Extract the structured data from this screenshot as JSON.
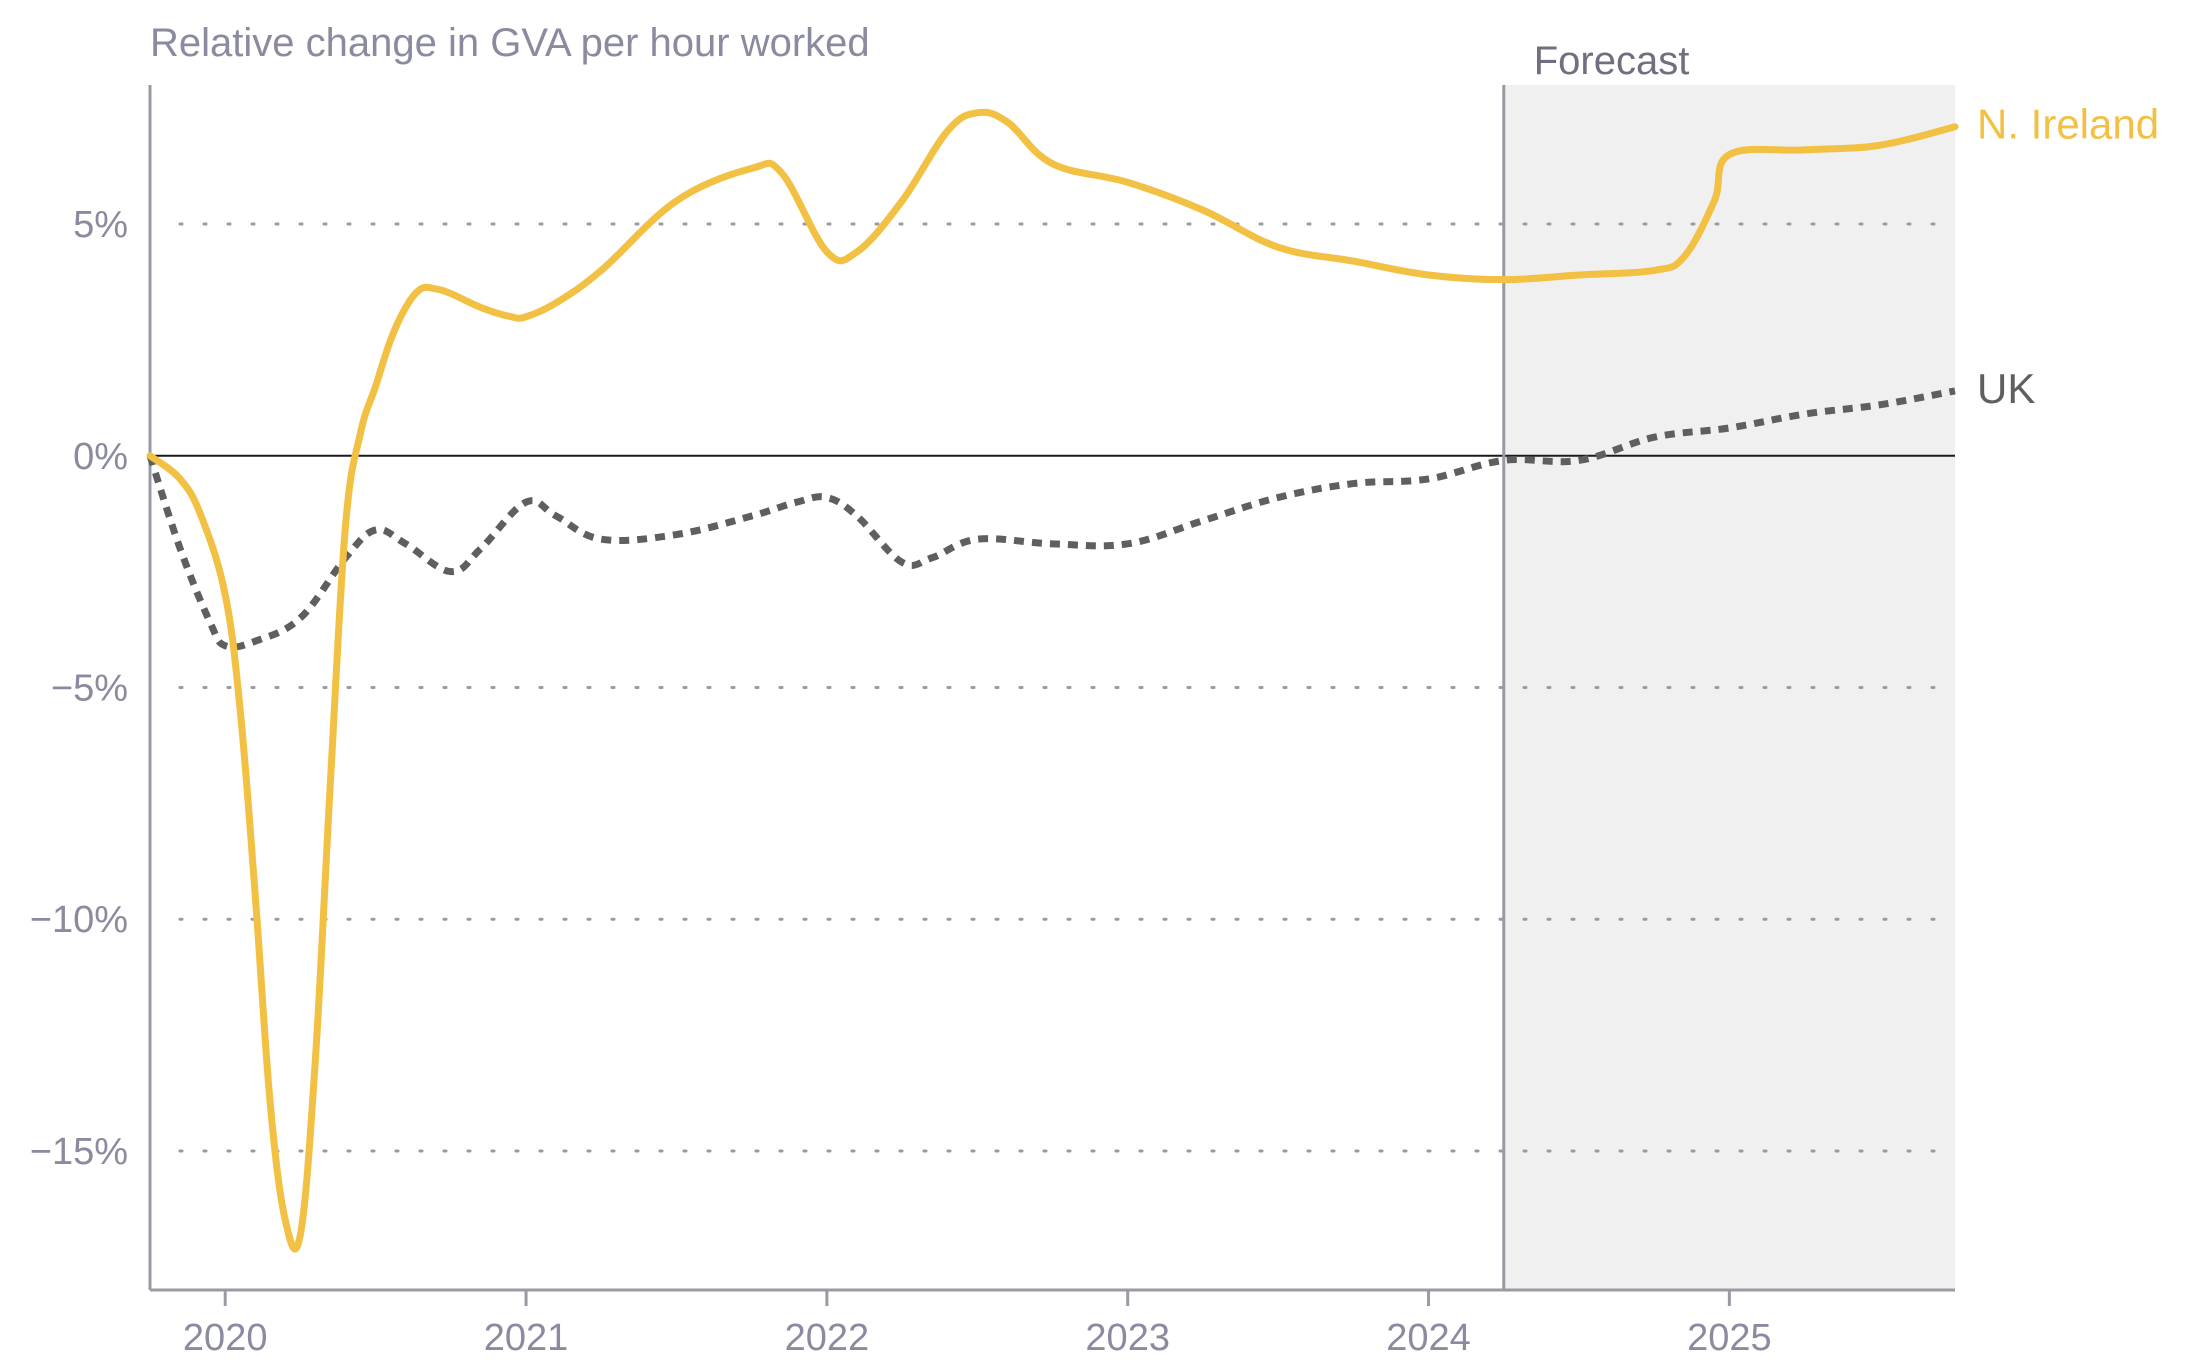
{
  "chart_data": {
    "type": "line",
    "title": "",
    "ylabel": "Relative change in GVA per hour worked",
    "xlabel": "",
    "ylim": [
      -18,
      8
    ],
    "xlim": [
      2019.75,
      2025.75
    ],
    "y_ticks": [
      {
        "value": 5,
        "label": "5%"
      },
      {
        "value": 0,
        "label": "0%"
      },
      {
        "value": -5,
        "label": "−5%"
      },
      {
        "value": -10,
        "label": "−10%"
      },
      {
        "value": -15,
        "label": "−15%"
      }
    ],
    "x_ticks": [
      {
        "value": 2020,
        "label": "2020"
      },
      {
        "value": 2021,
        "label": "2021"
      },
      {
        "value": 2022,
        "label": "2022"
      },
      {
        "value": 2023,
        "label": "2023"
      },
      {
        "value": 2024,
        "label": "2024"
      },
      {
        "value": 2025,
        "label": "2025"
      }
    ],
    "grid": "horizontal dotted",
    "forecast": {
      "label": "Forecast",
      "start": 2024.25,
      "end": 2025.75
    },
    "series": [
      {
        "name": "N. Ireland",
        "color": "#f2c043",
        "style": "solid",
        "x": [
          2019.75,
          2019.85,
          2019.92,
          2020.0,
          2020.05,
          2020.1,
          2020.15,
          2020.2,
          2020.25,
          2020.3,
          2020.35,
          2020.4,
          2020.45,
          2020.5,
          2020.55,
          2020.6,
          2020.65,
          2020.7,
          2020.75,
          2020.85,
          2020.95,
          2021.0,
          2021.1,
          2021.25,
          2021.5,
          2021.75,
          2021.85,
          2022.0,
          2022.1,
          2022.25,
          2022.4,
          2022.5,
          2022.6,
          2022.75,
          2023.0,
          2023.25,
          2023.5,
          2023.75,
          2024.0,
          2024.25,
          2024.5,
          2024.75,
          2024.85,
          2024.95,
          2025.0,
          2025.25,
          2025.5,
          2025.75
        ],
        "values": [
          0.0,
          -0.5,
          -1.3,
          -3.0,
          -5.5,
          -9.5,
          -14.0,
          -16.5,
          -16.8,
          -13.0,
          -7.0,
          -1.5,
          0.5,
          1.5,
          2.5,
          3.2,
          3.6,
          3.6,
          3.5,
          3.2,
          3.0,
          3.0,
          3.3,
          4.0,
          5.5,
          6.2,
          6.1,
          4.4,
          4.4,
          5.5,
          7.0,
          7.4,
          7.2,
          6.3,
          5.9,
          5.3,
          4.5,
          4.2,
          3.9,
          3.8,
          3.9,
          4.0,
          4.3,
          5.5,
          6.5,
          6.6,
          6.7,
          7.1
        ]
      },
      {
        "name": "UK",
        "color": "#5f5f5f",
        "style": "dotted",
        "x": [
          2019.75,
          2019.85,
          2019.95,
          2020.0,
          2020.1,
          2020.25,
          2020.4,
          2020.5,
          2020.6,
          2020.75,
          2020.85,
          2021.0,
          2021.1,
          2021.25,
          2021.5,
          2021.75,
          2021.9,
          2022.0,
          2022.1,
          2022.25,
          2022.35,
          2022.5,
          2022.75,
          2023.0,
          2023.25,
          2023.5,
          2023.75,
          2024.0,
          2024.25,
          2024.5,
          2024.75,
          2025.0,
          2025.25,
          2025.5,
          2025.75
        ],
        "values": [
          0.0,
          -2.0,
          -3.6,
          -4.1,
          -4.0,
          -3.5,
          -2.2,
          -1.6,
          -1.9,
          -2.5,
          -2.0,
          -1.0,
          -1.3,
          -1.8,
          -1.7,
          -1.3,
          -1.0,
          -0.9,
          -1.3,
          -2.3,
          -2.2,
          -1.8,
          -1.9,
          -1.9,
          -1.4,
          -0.9,
          -0.6,
          -0.5,
          -0.1,
          -0.1,
          0.4,
          0.6,
          0.9,
          1.1,
          1.4
        ]
      }
    ]
  }
}
